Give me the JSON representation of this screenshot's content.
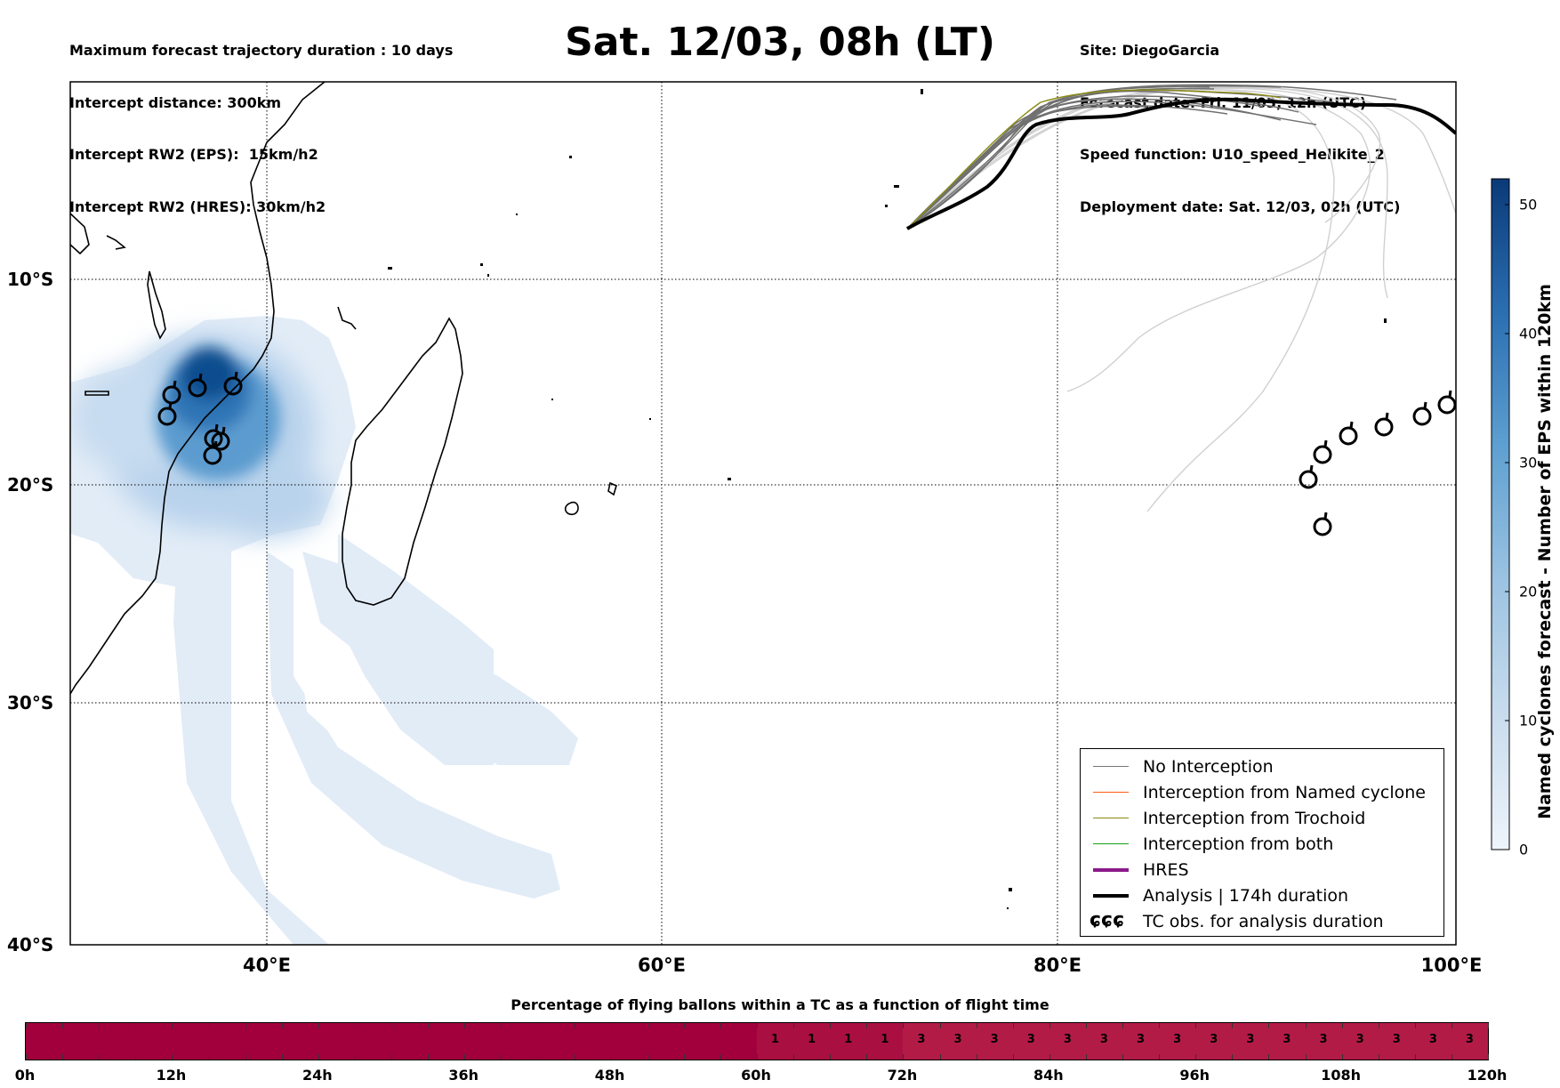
{
  "header": {
    "left_lines": [
      "Maximum forecast trajectory duration : 10 days",
      "Intercept distance: 300km",
      "Intercept RW2 (EPS):  15km/h2",
      "Intercept RW2 (HRES): 30km/h2"
    ],
    "title": "Sat. 12/03, 08h (LT)",
    "right_lines": [
      "Site: DiegoGarcia",
      "Forecast date: Fri. 11/03, 12h (UTC)",
      "Speed function: U10_speed_Helikite_2",
      "Deployment date: Sat. 12/03, 02h (UTC)"
    ]
  },
  "map": {
    "lat_labels": [
      "10°S",
      "20°S",
      "30°S",
      "40°S"
    ],
    "lon_labels": [
      "40°E",
      "60°E",
      "80°E",
      "100°E"
    ],
    "extent": {
      "lon_min": 30,
      "lon_max": 100,
      "lat_top": -0.5,
      "lat_bottom": -40
    },
    "gridlines": true
  },
  "colorbar": {
    "title": "Named cyclones forecast - Number of EPS within 120km",
    "ticks": [
      "0",
      "10",
      "20",
      "30",
      "40",
      "50"
    ],
    "range": [
      0,
      52
    ],
    "color_low": "#e1ecf8",
    "color_high": "#0a3a78"
  },
  "legend": {
    "items": [
      {
        "label": "No Interception",
        "color": "#777777",
        "style": "line-thin"
      },
      {
        "label": "Interception from Named cyclone",
        "color": "#ff5a14",
        "style": "line-thin"
      },
      {
        "label": "Interception from Trochoid",
        "color": "#8b8b14",
        "style": "line-thin"
      },
      {
        "label": "Interception from both",
        "color": "#18a018",
        "style": "line-thin"
      },
      {
        "label": "HRES",
        "color": "#8b1a8b",
        "style": "line-thick"
      },
      {
        "label": "Analysis | 174h duration",
        "color": "#000000",
        "style": "line-thick"
      },
      {
        "label": "TC obs. for analysis duration",
        "color": "#000000",
        "style": "symbol"
      }
    ],
    "tc_symbol": "ɕɕɕ"
  },
  "flight_bar": {
    "title": "Percentage of flying ballons within a TC as a function of flight time",
    "ticks": [
      "0h",
      "12h",
      "24h",
      "36h",
      "48h",
      "60h",
      "72h",
      "84h",
      "96h",
      "108h",
      "120h"
    ],
    "max_hours": 120,
    "segments": [
      {
        "from_h": 0,
        "to_h": 60,
        "value": "",
        "color": "#a2003c"
      },
      {
        "from_h": 60,
        "to_h": 72,
        "value": "1",
        "color": "#aa0f41"
      },
      {
        "from_h": 72,
        "to_h": 120,
        "value": "3",
        "color": "#b31b47"
      }
    ],
    "step_h": 3
  }
}
